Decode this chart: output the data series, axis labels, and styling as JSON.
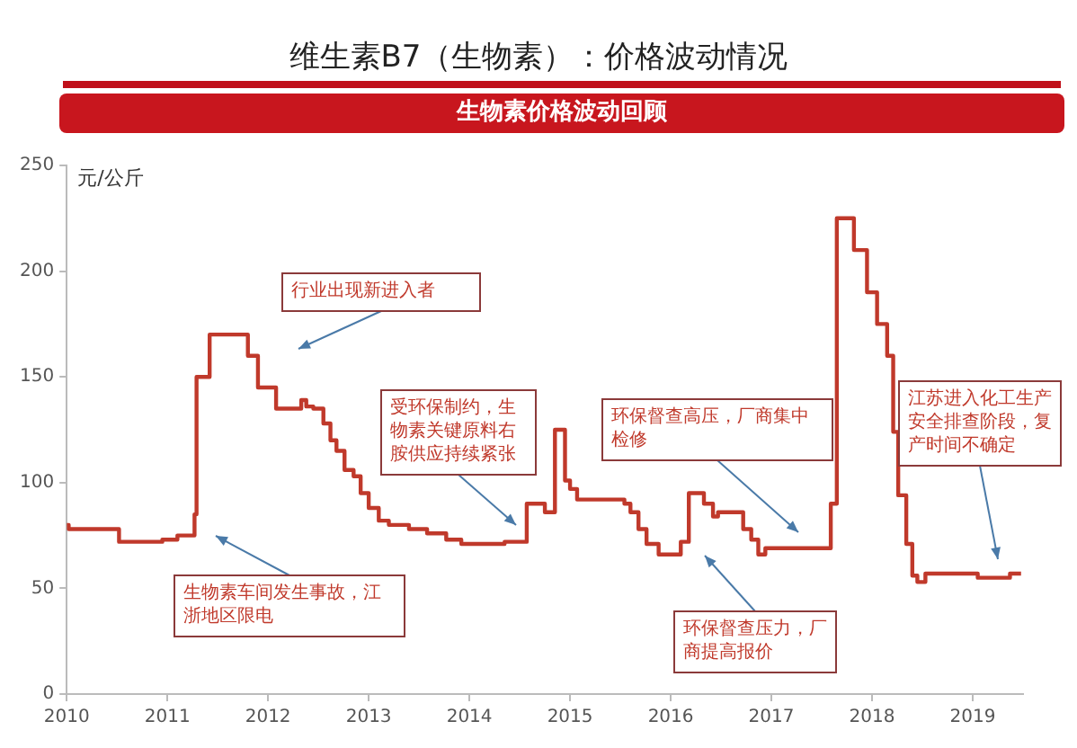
{
  "chart_data": {
    "type": "step",
    "title": "维生素B7（生物素）：价格波动情况",
    "subtitle": "生物素价格波动回顾",
    "ylabel": "元/公斤",
    "x": [
      2010.0,
      2010.02,
      2010.52,
      2010.95,
      2011.1,
      2011.27,
      2011.29,
      2011.42,
      2011.8,
      2011.9,
      2012.08,
      2012.33,
      2012.38,
      2012.45,
      2012.55,
      2012.62,
      2012.68,
      2012.76,
      2012.85,
      2012.92,
      2013.0,
      2013.1,
      2013.2,
      2013.4,
      2013.58,
      2013.77,
      2013.92,
      2014.35,
      2014.57,
      2014.75,
      2014.85,
      2014.95,
      2015.0,
      2015.07,
      2015.54,
      2015.6,
      2015.68,
      2015.76,
      2015.88,
      2016.1,
      2016.18,
      2016.33,
      2016.42,
      2016.47,
      2016.72,
      2016.8,
      2016.87,
      2016.94,
      2017.59,
      2017.65,
      2017.82,
      2017.95,
      2018.05,
      2018.15,
      2018.21,
      2018.26,
      2018.34,
      2018.4,
      2018.45,
      2018.53,
      2019.05,
      2019.37,
      2019.48
    ],
    "series": [
      {
        "color": "#c0392b",
        "values": [
          80,
          78,
          72,
          73,
          75,
          85,
          150,
          170,
          160,
          145,
          135,
          139,
          136,
          135,
          128,
          120,
          115,
          106,
          103,
          95,
          88,
          82,
          80,
          78,
          76,
          73,
          71,
          72,
          90,
          86,
          125,
          101,
          97,
          92,
          90,
          86,
          78,
          71,
          66,
          72,
          95,
          90,
          84,
          86,
          78,
          73,
          66,
          69,
          90,
          225,
          210,
          190,
          175,
          160,
          124,
          94,
          71,
          56,
          53,
          57,
          55,
          57,
          57
        ]
      }
    ],
    "xlim": [
      2010,
      2019.5
    ],
    "xticks": [
      2010,
      2011,
      2012,
      2013,
      2014,
      2015,
      2016,
      2017,
      2018,
      2019
    ],
    "ylim": [
      0,
      250
    ],
    "yticks": [
      0,
      50,
      100,
      150,
      200,
      250
    ],
    "grid": false,
    "legend": false,
    "marker": "none",
    "line_style": "solid",
    "annotations": [
      "行业出现新进入者",
      "受环保制约，生物素关键原料右胺供应持续紧张",
      "环保督查高压，厂商集中检修",
      "环保督查压力，厂商提高报价",
      "江苏进入化工生产安全排查阶段，复产时间不确定",
      "生物素车间发生事故，江浙地区限电"
    ]
  }
}
